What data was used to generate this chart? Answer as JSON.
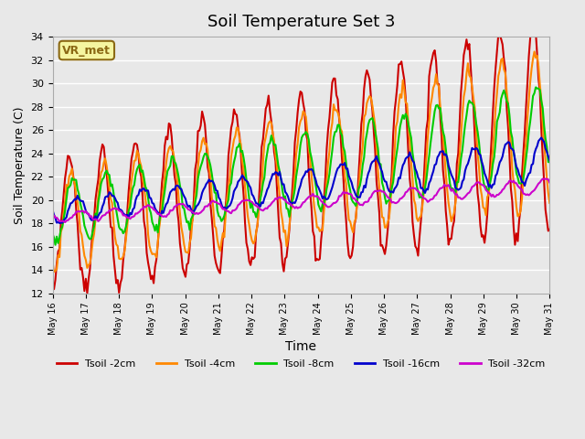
{
  "title": "Soil Temperature Set 3",
  "xlabel": "Time",
  "ylabel": "Soil Temperature (C)",
  "ylim": [
    12,
    34
  ],
  "yticks": [
    12,
    14,
    16,
    18,
    20,
    22,
    24,
    26,
    28,
    30,
    32,
    34
  ],
  "plot_bg_color": "#e8e8e8",
  "grid_color": "#ffffff",
  "annotation_text": "VR_met",
  "annotation_bg": "#f5f5a0",
  "annotation_border": "#8b6914",
  "series_names": [
    "Tsoil -2cm",
    "Tsoil -4cm",
    "Tsoil -8cm",
    "Tsoil -16cm",
    "Tsoil -32cm"
  ],
  "series_colors": [
    "#cc0000",
    "#ff8800",
    "#00cc00",
    "#0000cc",
    "#cc00cc"
  ],
  "series_lw": [
    1.5,
    1.5,
    1.5,
    1.5,
    1.5
  ],
  "n_days": 15,
  "xtick_labels": [
    "May 16",
    "May 17",
    "May 18",
    "May 19",
    "May 20",
    "May 21",
    "May 22",
    "May 23",
    "May 24",
    "May 25",
    "May 26",
    "May 27",
    "May 28",
    "May 29",
    "May 30",
    "May 31"
  ]
}
